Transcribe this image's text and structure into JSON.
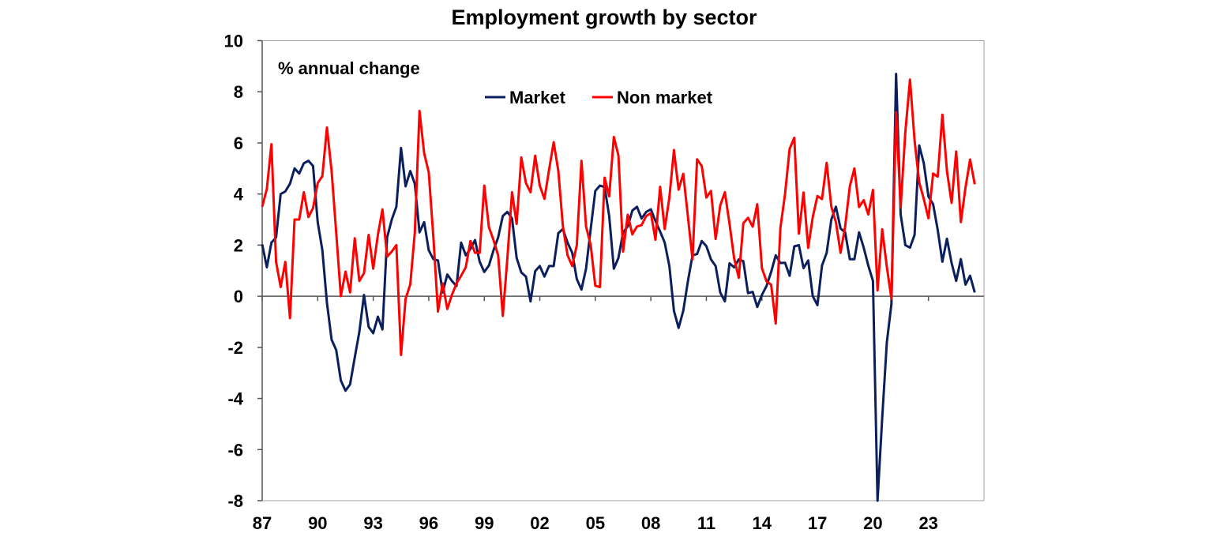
{
  "chart_data": {
    "type": "line",
    "title": "Employment growth by sector",
    "ylabel": "% annual change",
    "xlabel": "",
    "ylim": [
      -8,
      10
    ],
    "yticks": [
      "10",
      "8",
      "6",
      "4",
      "2",
      "0",
      "-2",
      "-4",
      "-6",
      "-8"
    ],
    "xticks": [
      "87",
      "90",
      "93",
      "96",
      "99",
      "02",
      "05",
      "08",
      "11",
      "14",
      "17",
      "20",
      "23"
    ],
    "xlim": [
      "1987Q1",
      "2025Q4"
    ],
    "grid": false,
    "legend_position": "top-center",
    "x": [
      "1987Q1",
      "1987Q2",
      "1987Q3",
      "1987Q4",
      "1988Q1",
      "1988Q2",
      "1988Q3",
      "1988Q4",
      "1989Q1",
      "1989Q2",
      "1989Q3",
      "1989Q4",
      "1990Q1",
      "1990Q2",
      "1990Q3",
      "1990Q4",
      "1991Q1",
      "1991Q2",
      "1991Q3",
      "1991Q4",
      "1992Q1",
      "1992Q2",
      "1992Q3",
      "1992Q4",
      "1993Q1",
      "1993Q2",
      "1993Q3",
      "1993Q4",
      "1994Q1",
      "1994Q2",
      "1994Q3",
      "1994Q4",
      "1995Q1",
      "1995Q2",
      "1995Q3",
      "1995Q4",
      "1996Q1",
      "1996Q2",
      "1996Q3",
      "1996Q4",
      "1997Q1",
      "1997Q2",
      "1997Q3",
      "1997Q4",
      "1998Q1",
      "1998Q2",
      "1998Q3",
      "1998Q4",
      "1999Q1",
      "1999Q2",
      "1999Q3",
      "1999Q4",
      "2000Q1",
      "2000Q2",
      "2000Q3",
      "2000Q4",
      "2001Q1",
      "2001Q2",
      "2001Q3",
      "2001Q4",
      "2002Q1",
      "2002Q2",
      "2002Q3",
      "2002Q4",
      "2003Q1",
      "2003Q2",
      "2003Q3",
      "2003Q4",
      "2004Q1",
      "2004Q2",
      "2004Q3",
      "2004Q4",
      "2005Q1",
      "2005Q2",
      "2005Q3",
      "2005Q4",
      "2006Q1",
      "2006Q2",
      "2006Q3",
      "2006Q4",
      "2007Q1",
      "2007Q2",
      "2007Q3",
      "2007Q4",
      "2008Q1",
      "2008Q2",
      "2008Q3",
      "2008Q4",
      "2009Q1",
      "2009Q2",
      "2009Q3",
      "2009Q4",
      "2010Q1",
      "2010Q2",
      "2010Q3",
      "2010Q4",
      "2011Q1",
      "2011Q2",
      "2011Q3",
      "2011Q4",
      "2012Q1",
      "2012Q2",
      "2012Q3",
      "2012Q4",
      "2013Q1",
      "2013Q2",
      "2013Q3",
      "2013Q4",
      "2014Q1",
      "2014Q2",
      "2014Q3",
      "2014Q4",
      "2015Q1",
      "2015Q2",
      "2015Q3",
      "2015Q4",
      "2016Q1",
      "2016Q2",
      "2016Q3",
      "2016Q4",
      "2017Q1",
      "2017Q2",
      "2017Q3",
      "2017Q4",
      "2018Q1",
      "2018Q2",
      "2018Q3",
      "2018Q4",
      "2019Q1",
      "2019Q2",
      "2019Q3",
      "2019Q4",
      "2020Q1",
      "2020Q2",
      "2020Q3",
      "2020Q4",
      "2021Q1",
      "2021Q2",
      "2021Q3",
      "2021Q4",
      "2022Q1",
      "2022Q2",
      "2022Q3",
      "2022Q4",
      "2023Q1",
      "2023Q2",
      "2023Q3",
      "2023Q4",
      "2024Q1",
      "2024Q2",
      "2024Q3",
      "2024Q4",
      "2025Q1",
      "2025Q2",
      "2025Q3"
    ],
    "series": [
      {
        "name": "Market",
        "color": "#0b1f5c",
        "values": [
          2.03,
          1.13,
          2.1,
          2.3,
          4.0,
          4.1,
          4.4,
          5.0,
          4.8,
          5.2,
          5.3,
          5.1,
          2.9,
          1.8,
          -0.26,
          -1.7,
          -2.1,
          -3.3,
          -3.7,
          -3.45,
          -2.4,
          -1.4,
          0.05,
          -1.2,
          -1.45,
          -0.8,
          -1.3,
          2.3,
          3.0,
          3.5,
          5.8,
          4.3,
          4.9,
          4.4,
          2.5,
          2.9,
          1.8,
          1.45,
          1.4,
          0.15,
          0.85,
          0.6,
          0.4,
          2.1,
          1.6,
          1.85,
          2.2,
          1.35,
          0.95,
          1.2,
          1.8,
          2.3,
          3.14,
          3.3,
          3.04,
          1.5,
          0.93,
          0.77,
          -0.2,
          0.98,
          1.18,
          0.77,
          1.18,
          1.18,
          2.47,
          2.63,
          2.1,
          1.7,
          0.67,
          0.26,
          1.08,
          2.63,
          4.12,
          4.33,
          4.27,
          3.14,
          1.08,
          1.5,
          2.5,
          2.73,
          3.35,
          3.5,
          3.04,
          3.3,
          3.4,
          2.94,
          2.53,
          2.1,
          1.18,
          -0.57,
          -1.24,
          -0.57,
          0.57,
          1.6,
          1.65,
          2.16,
          1.96,
          1.44,
          1.18,
          0.15,
          -0.2,
          1.29,
          1.13,
          1.44,
          1.37,
          0.12,
          0.17,
          -0.42,
          0.05,
          0.4,
          0.95,
          1.6,
          1.3,
          1.31,
          0.8,
          1.95,
          2.0,
          1.1,
          1.4,
          0.0,
          -0.35,
          1.2,
          1.7,
          3.0,
          3.5,
          2.65,
          2.5,
          1.45,
          1.45,
          2.5,
          1.9,
          1.2,
          0.6,
          -8.0,
          -4.77,
          -1.8,
          -0.3,
          8.7,
          3.2,
          2.0,
          1.9,
          2.4,
          5.9,
          5.2,
          3.9,
          3.6,
          2.6,
          1.35,
          2.25,
          1.3,
          0.6,
          1.45,
          0.45,
          0.8,
          0.15
        ]
      },
      {
        "name": "Non market",
        "color": "#ff0000",
        "values": [
          3.5,
          4.2,
          5.95,
          1.34,
          0.36,
          1.34,
          -0.86,
          3.0,
          3.0,
          4.07,
          3.1,
          3.45,
          4.43,
          4.7,
          6.6,
          4.9,
          2.5,
          0.0,
          0.96,
          0.15,
          2.27,
          0.6,
          0.9,
          2.4,
          1.08,
          2.4,
          3.4,
          1.55,
          1.75,
          2.0,
          -2.3,
          -0.1,
          0.46,
          2.5,
          7.25,
          5.6,
          4.85,
          2.3,
          -0.6,
          0.5,
          -0.5,
          0.05,
          0.5,
          0.8,
          1.13,
          2.16,
          1.7,
          1.7,
          4.33,
          2.7,
          2.2,
          1.6,
          -0.77,
          1.5,
          4.07,
          2.83,
          5.43,
          4.43,
          4.07,
          5.5,
          4.33,
          3.81,
          4.95,
          6.03,
          4.9,
          2.73,
          1.6,
          1.18,
          2.0,
          5.3,
          2.73,
          2.0,
          0.41,
          0.36,
          4.64,
          3.91,
          6.23,
          5.51,
          1.75,
          3.19,
          2.42,
          2.73,
          2.78,
          3.14,
          3.25,
          2.21,
          4.28,
          2.63,
          3.86,
          5.72,
          4.17,
          4.79,
          3.14,
          1.44,
          5.36,
          5.1,
          3.86,
          4.12,
          2.24,
          3.55,
          4.07,
          2.83,
          1.49,
          0.72,
          2.86,
          3.07,
          2.72,
          3.6,
          1.1,
          0.58,
          0.45,
          -1.07,
          2.67,
          4.0,
          5.77,
          6.2,
          2.45,
          4.06,
          1.89,
          3.1,
          3.92,
          3.8,
          5.22,
          3.5,
          2.9,
          1.7,
          2.73,
          4.3,
          5.0,
          3.49,
          3.76,
          3.2,
          4.16,
          0.23,
          2.62,
          1.15,
          -0.1,
          7.2,
          3.49,
          6.42,
          8.48,
          6.1,
          4.46,
          3.8,
          3.05,
          4.8,
          4.68,
          7.1,
          4.9,
          3.65,
          5.66,
          2.9,
          4.25,
          5.35,
          4.38
        ]
      }
    ]
  }
}
